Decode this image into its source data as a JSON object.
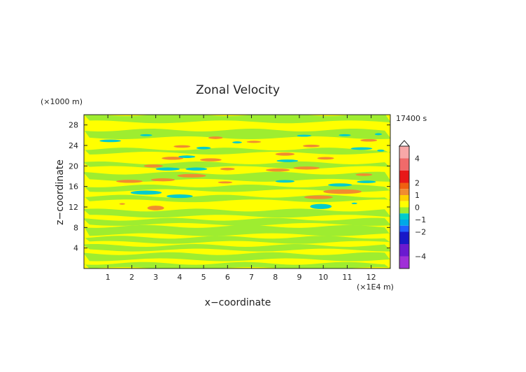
{
  "chart_data": {
    "type": "heatmap",
    "title": "Zonal Velocity",
    "xlabel": "x−coordinate",
    "ylabel": "z−coordinate",
    "x_unit": "(×1E4 m)",
    "y_unit": "(×1000 m)",
    "time_label": "17400 s",
    "xlim": [
      0,
      12.8
    ],
    "ylim": [
      0,
      30
    ],
    "x_ticks": [
      1,
      2,
      3,
      4,
      5,
      6,
      7,
      8,
      9,
      10,
      11,
      12
    ],
    "y_ticks": [
      4,
      8,
      12,
      16,
      20,
      24,
      28
    ],
    "colorbar": {
      "ticks": [
        4,
        2,
        1,
        0,
        -1,
        -2,
        -4
      ],
      "range": [
        -5,
        5
      ],
      "levels": [
        {
          "from": 4,
          "to": 5,
          "color": "#f8a8a8"
        },
        {
          "from": 3,
          "to": 4,
          "color": "#f06a6a"
        },
        {
          "from": 2,
          "to": 3,
          "color": "#e81818"
        },
        {
          "from": 1.5,
          "to": 2,
          "color": "#f06010"
        },
        {
          "from": 1,
          "to": 1.5,
          "color": "#f08c30"
        },
        {
          "from": 0.5,
          "to": 1,
          "color": "#ffd000"
        },
        {
          "from": 0,
          "to": 0.5,
          "color": "#ffff00"
        },
        {
          "from": -0.5,
          "to": 0,
          "color": "#9eed30"
        },
        {
          "from": -1,
          "to": -0.5,
          "color": "#00cccc"
        },
        {
          "from": -1.5,
          "to": -1,
          "color": "#00a8e8"
        },
        {
          "from": -2,
          "to": -1.5,
          "color": "#2060ff"
        },
        {
          "from": -3,
          "to": -2,
          "color": "#1818c8"
        },
        {
          "from": -4,
          "to": -3,
          "color": "#6a1ad0"
        },
        {
          "from": -5,
          "to": -4,
          "color": "#a030d8"
        }
      ]
    },
    "field": {
      "background_color": "#ffff00",
      "bands_green": [
        {
          "z0": 28.6,
          "z1": 30,
          "x0": 0,
          "x1": 12.8
        },
        {
          "z0": 25.5,
          "z1": 27,
          "x0": 0,
          "x1": 12.8
        },
        {
          "z0": 22.5,
          "z1": 23.3,
          "x0": 0,
          "x1": 12.8
        },
        {
          "z0": 19.7,
          "z1": 20.6,
          "x0": 0,
          "x1": 12.8
        },
        {
          "z0": 17.2,
          "z1": 18.6,
          "x0": 0,
          "x1": 12.8
        },
        {
          "z0": 15.2,
          "z1": 16.1,
          "x0": 0,
          "x1": 12.8
        },
        {
          "z0": 13.2,
          "z1": 14.1,
          "x0": 0,
          "x1": 12.8
        },
        {
          "z0": 10.2,
          "z1": 11.4,
          "x0": 0,
          "x1": 12.8
        },
        {
          "z0": 8.6,
          "z1": 9.6,
          "x0": 0,
          "x1": 12.8
        },
        {
          "z0": 6.6,
          "z1": 8.2,
          "x0": 0,
          "x1": 12.8
        },
        {
          "z0": 5.1,
          "z1": 6.1,
          "x0": 0,
          "x1": 12.8
        },
        {
          "z0": 3.6,
          "z1": 4.5,
          "x0": 0,
          "x1": 12.8
        },
        {
          "z0": 1.7,
          "z1": 2.9,
          "x0": 0,
          "x1": 12.8
        },
        {
          "z0": 0,
          "z1": 1.0,
          "x0": 0,
          "x1": 12.8
        }
      ],
      "cells_positive": [
        {
          "x": 1.9,
          "z": 17.0,
          "rx": 0.55,
          "rz": 0.3
        },
        {
          "x": 3.3,
          "z": 17.3,
          "rx": 0.5,
          "rz": 0.3
        },
        {
          "x": 4.5,
          "z": 18.1,
          "rx": 0.6,
          "rz": 0.35
        },
        {
          "x": 5.3,
          "z": 21.2,
          "rx": 0.45,
          "rz": 0.3
        },
        {
          "x": 3.7,
          "z": 21.5,
          "rx": 0.45,
          "rz": 0.3
        },
        {
          "x": 2.9,
          "z": 20.0,
          "rx": 0.4,
          "rz": 0.3
        },
        {
          "x": 4.1,
          "z": 23.8,
          "rx": 0.35,
          "rz": 0.25
        },
        {
          "x": 5.5,
          "z": 25.5,
          "rx": 0.3,
          "rz": 0.25
        },
        {
          "x": 6.0,
          "z": 19.4,
          "rx": 0.3,
          "rz": 0.25
        },
        {
          "x": 3.0,
          "z": 11.8,
          "rx": 0.35,
          "rz": 0.45
        },
        {
          "x": 1.6,
          "z": 12.6,
          "rx": 0.12,
          "rz": 0.15
        },
        {
          "x": 8.1,
          "z": 19.2,
          "rx": 0.5,
          "rz": 0.3
        },
        {
          "x": 9.3,
          "z": 19.6,
          "rx": 0.55,
          "rz": 0.3
        },
        {
          "x": 8.4,
          "z": 22.3,
          "rx": 0.4,
          "rz": 0.3
        },
        {
          "x": 9.5,
          "z": 23.9,
          "rx": 0.35,
          "rz": 0.25
        },
        {
          "x": 10.1,
          "z": 21.5,
          "rx": 0.35,
          "rz": 0.25
        },
        {
          "x": 10.8,
          "z": 15.0,
          "rx": 0.8,
          "rz": 0.45
        },
        {
          "x": 9.8,
          "z": 13.9,
          "rx": 0.6,
          "rz": 0.35
        },
        {
          "x": 11.7,
          "z": 18.3,
          "rx": 0.35,
          "rz": 0.25
        },
        {
          "x": 11.9,
          "z": 25.0,
          "rx": 0.35,
          "rz": 0.25
        },
        {
          "x": 7.1,
          "z": 24.7,
          "rx": 0.3,
          "rz": 0.2
        },
        {
          "x": 5.9,
          "z": 16.8,
          "rx": 0.3,
          "rz": 0.2
        }
      ],
      "cells_negative": [
        {
          "x": 1.1,
          "z": 24.9,
          "rx": 0.45,
          "rz": 0.25
        },
        {
          "x": 2.6,
          "z": 14.8,
          "rx": 0.65,
          "rz": 0.4
        },
        {
          "x": 4.0,
          "z": 14.1,
          "rx": 0.55,
          "rz": 0.35
        },
        {
          "x": 3.5,
          "z": 19.4,
          "rx": 0.5,
          "rz": 0.3
        },
        {
          "x": 4.7,
          "z": 19.4,
          "rx": 0.45,
          "rz": 0.3
        },
        {
          "x": 4.3,
          "z": 21.8,
          "rx": 0.35,
          "rz": 0.25
        },
        {
          "x": 5.0,
          "z": 23.5,
          "rx": 0.3,
          "rz": 0.25
        },
        {
          "x": 2.6,
          "z": 26.0,
          "rx": 0.25,
          "rz": 0.2
        },
        {
          "x": 6.4,
          "z": 24.6,
          "rx": 0.2,
          "rz": 0.2
        },
        {
          "x": 8.5,
          "z": 21.0,
          "rx": 0.45,
          "rz": 0.25
        },
        {
          "x": 9.9,
          "z": 12.1,
          "rx": 0.45,
          "rz": 0.5
        },
        {
          "x": 8.4,
          "z": 17.0,
          "rx": 0.4,
          "rz": 0.25
        },
        {
          "x": 10.7,
          "z": 16.3,
          "rx": 0.5,
          "rz": 0.3
        },
        {
          "x": 11.8,
          "z": 16.9,
          "rx": 0.4,
          "rz": 0.25
        },
        {
          "x": 11.6,
          "z": 23.4,
          "rx": 0.45,
          "rz": 0.25
        },
        {
          "x": 12.4,
          "z": 23.0,
          "rx": 0.15,
          "rz": 0.2
        },
        {
          "x": 9.2,
          "z": 25.9,
          "rx": 0.3,
          "rz": 0.2
        },
        {
          "x": 10.9,
          "z": 26.0,
          "rx": 0.25,
          "rz": 0.2
        },
        {
          "x": 12.3,
          "z": 26.2,
          "rx": 0.15,
          "rz": 0.2
        },
        {
          "x": 11.3,
          "z": 12.7,
          "rx": 0.12,
          "rz": 0.15
        }
      ]
    }
  }
}
